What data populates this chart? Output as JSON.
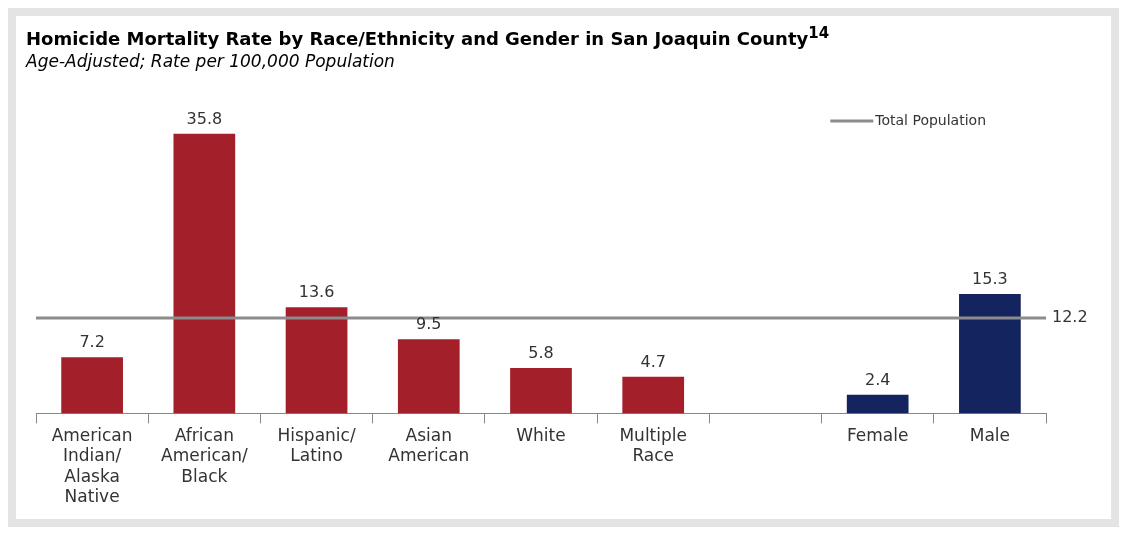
{
  "chart_data": {
    "type": "bar",
    "title": "Homicide Mortality Rate by Race/Ethnicity and Gender in San Joaquin County$^{14}$",
    "subtitle": "Age-Adjusted; Rate per 100,000 Population",
    "categories": [
      "American Indian/ Alaska Native",
      "African American/ Black",
      "Hispanic/ Latino",
      "Asian American",
      "White",
      "Multiple Race",
      null,
      "Female",
      "Male"
    ],
    "values": [
      7.2,
      35.8,
      13.6,
      9.5,
      5.8,
      4.7,
      null,
      2.4,
      15.3
    ],
    "colors": [
      "#a31f2a",
      "#a31f2a",
      "#a31f2a",
      "#a31f2a",
      "#a31f2a",
      "#a31f2a",
      "#a31f2a",
      "#14245e",
      "#14245e"
    ],
    "ref_lines": [
      {
        "axis": "y",
        "value": 12.2,
        "label": "Total Population",
        "color": "#8c8c8c"
      }
    ],
    "annotations": [
      "12.2"
    ],
    "data_labels": true,
    "legend": "top right",
    "tick_labels": "x",
    "grid": false
  }
}
